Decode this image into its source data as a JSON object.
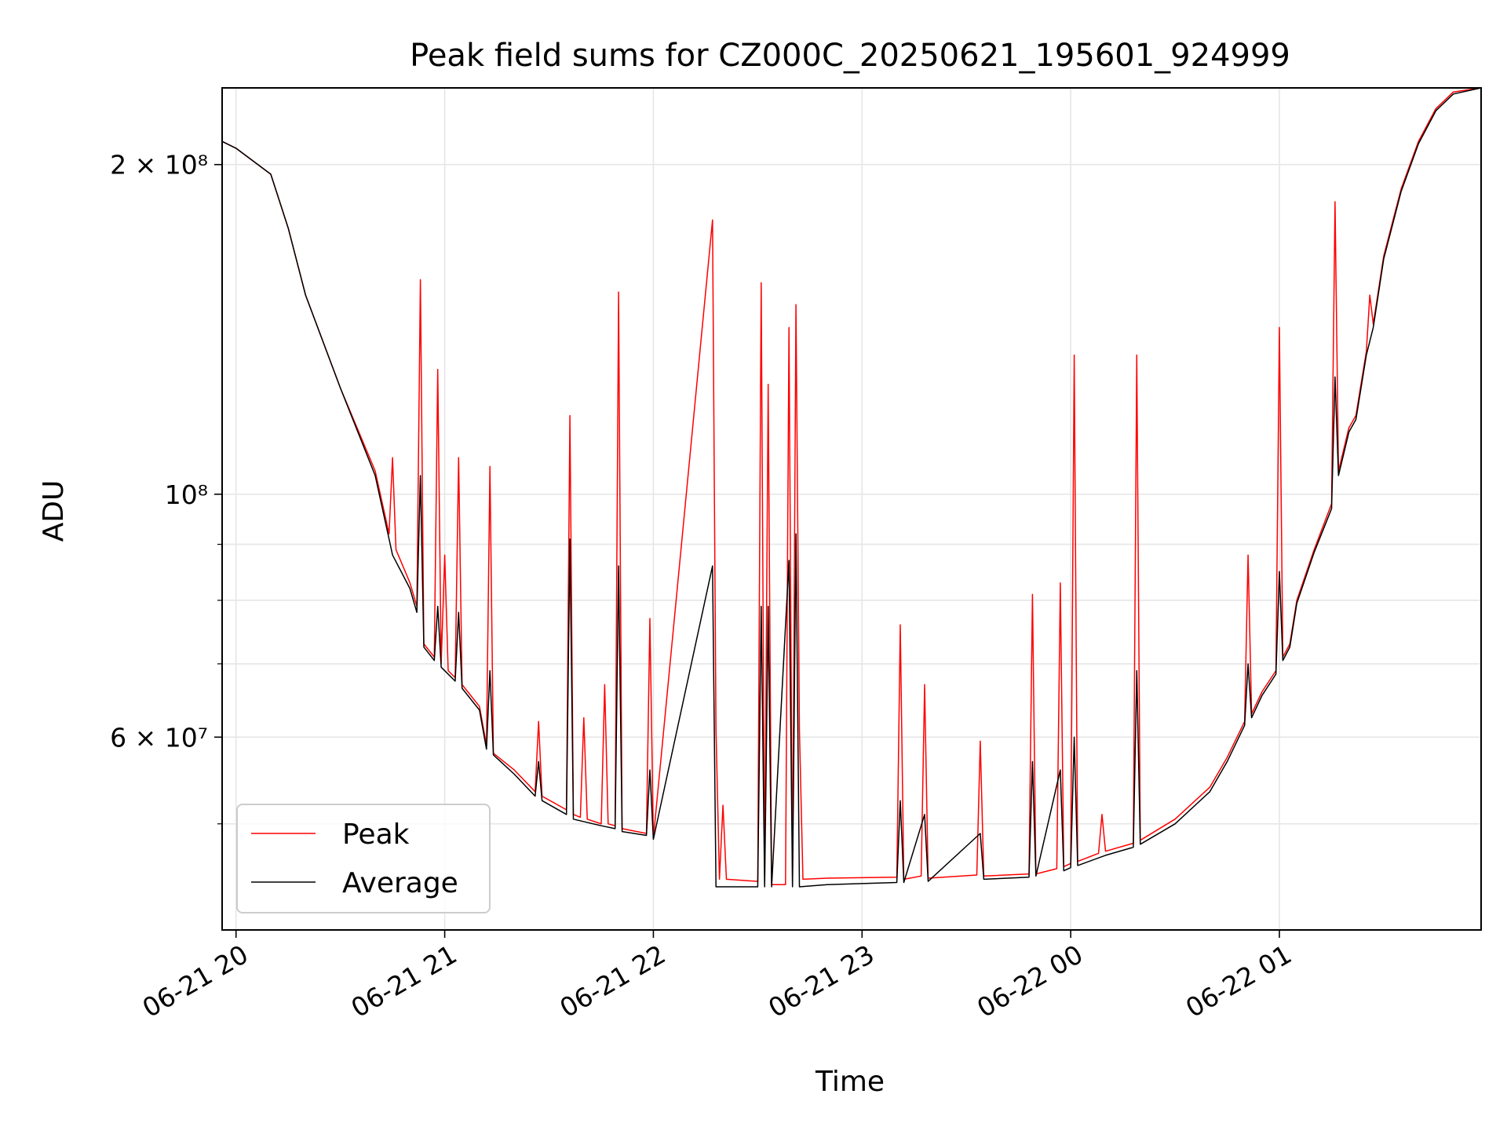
{
  "chart_data": {
    "type": "line",
    "title": "Peak field sums for CZ000C_20250621_195601_924999",
    "xlabel": "Time",
    "ylabel": "ADU",
    "yscale": "log",
    "ylim": [
      40000000,
      235000000
    ],
    "xlim": [
      "2025-06-21 19:56",
      "2025-06-22 01:58"
    ],
    "grid": true,
    "legend_position": "lower-left",
    "x_ticks": [
      {
        "value": "2025-06-21 20:00",
        "label": "06-21 20"
      },
      {
        "value": "2025-06-21 21:00",
        "label": "06-21 21"
      },
      {
        "value": "2025-06-21 22:00",
        "label": "06-21 22"
      },
      {
        "value": "2025-06-21 23:00",
        "label": "06-21 23"
      },
      {
        "value": "2025-06-22 00:00",
        "label": "06-22 00"
      },
      {
        "value": "2025-06-22 01:00",
        "label": "06-22 01"
      }
    ],
    "y_ticks": [
      {
        "value": 200000000,
        "label": "2 × 10⁸"
      },
      {
        "value": 100000000,
        "label": "10⁸"
      },
      {
        "value": 60000000,
        "label": "6 × 10⁷"
      }
    ],
    "y_minor_ticks": [
      50000000,
      70000000,
      80000000,
      90000000
    ],
    "series": [
      {
        "name": "Peak",
        "color": "#ff0000",
        "points": [
          [
            "2025-06-21 19:56",
            210000000
          ],
          [
            "2025-06-21 20:00",
            207000000
          ],
          [
            "2025-06-21 20:10",
            196000000
          ],
          [
            "2025-06-21 20:15",
            175000000
          ],
          [
            "2025-06-21 20:20",
            152000000
          ],
          [
            "2025-06-21 20:30",
            125000000
          ],
          [
            "2025-06-21 20:40",
            105000000
          ],
          [
            "2025-06-21 20:44",
            92000000
          ],
          [
            "2025-06-21 20:45",
            108000000
          ],
          [
            "2025-06-21 20:46",
            89000000
          ],
          [
            "2025-06-21 20:50",
            83000000
          ],
          [
            "2025-06-21 20:52",
            79000000
          ],
          [
            "2025-06-21 20:53",
            157000000
          ],
          [
            "2025-06-21 20:54",
            73000000
          ],
          [
            "2025-06-21 20:57",
            71000000
          ],
          [
            "2025-06-21 20:58",
            130000000
          ],
          [
            "2025-06-21 20:59",
            70000000
          ],
          [
            "2025-06-21 21:00",
            88000000
          ],
          [
            "2025-06-21 21:01",
            69000000
          ],
          [
            "2025-06-21 21:03",
            68000000
          ],
          [
            "2025-06-21 21:04",
            108000000
          ],
          [
            "2025-06-21 21:05",
            67000000
          ],
          [
            "2025-06-21 21:10",
            64000000
          ],
          [
            "2025-06-21 21:12",
            59000000
          ],
          [
            "2025-06-21 21:13",
            106000000
          ],
          [
            "2025-06-21 21:14",
            58000000
          ],
          [
            "2025-06-21 21:20",
            56000000
          ],
          [
            "2025-06-21 21:26",
            53500000
          ],
          [
            "2025-06-21 21:27",
            62000000
          ],
          [
            "2025-06-21 21:28",
            53000000
          ],
          [
            "2025-06-21 21:35",
            51500000
          ],
          [
            "2025-06-21 21:36",
            118000000
          ],
          [
            "2025-06-21 21:37",
            51000000
          ],
          [
            "2025-06-21 21:39",
            50700000
          ],
          [
            "2025-06-21 21:40",
            62500000
          ],
          [
            "2025-06-21 21:41",
            50500000
          ],
          [
            "2025-06-21 21:45",
            50000000
          ],
          [
            "2025-06-21 21:46",
            67000000
          ],
          [
            "2025-06-21 21:47",
            50000000
          ],
          [
            "2025-06-21 21:49",
            49800000
          ],
          [
            "2025-06-21 21:50",
            153000000
          ],
          [
            "2025-06-21 21:51",
            49500000
          ],
          [
            "2025-06-21 21:58",
            49000000
          ],
          [
            "2025-06-21 21:59",
            77000000
          ],
          [
            "2025-06-21 22:00",
            48500000
          ],
          [
            "2025-06-21 22:17",
            178000000
          ],
          [
            "2025-06-21 22:18",
            61000000
          ],
          [
            "2025-06-21 22:19",
            44500000
          ],
          [
            "2025-06-21 22:20",
            52000000
          ],
          [
            "2025-06-21 22:21",
            44500000
          ],
          [
            "2025-06-21 22:30",
            44300000
          ],
          [
            "2025-06-21 22:31",
            156000000
          ],
          [
            "2025-06-21 22:32",
            44200000
          ],
          [
            "2025-06-21 22:33",
            126000000
          ],
          [
            "2025-06-21 22:34",
            44000000
          ],
          [
            "2025-06-21 22:38",
            44000000
          ],
          [
            "2025-06-21 22:39",
            142000000
          ],
          [
            "2025-06-21 22:40",
            44000000
          ],
          [
            "2025-06-21 22:41",
            149000000
          ],
          [
            "2025-06-21 22:42",
            61000000
          ],
          [
            "2025-06-21 22:43",
            44500000
          ],
          [
            "2025-06-21 22:50",
            44600000
          ],
          [
            "2025-06-21 23:10",
            44700000
          ],
          [
            "2025-06-21 23:11",
            76000000
          ],
          [
            "2025-06-21 23:12",
            44500000
          ],
          [
            "2025-06-21 23:17",
            44800000
          ],
          [
            "2025-06-21 23:18",
            67000000
          ],
          [
            "2025-06-21 23:19",
            44600000
          ],
          [
            "2025-06-21 23:33",
            44900000
          ],
          [
            "2025-06-21 23:34",
            59500000
          ],
          [
            "2025-06-21 23:35",
            44800000
          ],
          [
            "2025-06-21 23:48",
            45000000
          ],
          [
            "2025-06-21 23:49",
            81000000
          ],
          [
            "2025-06-21 23:50",
            45000000
          ],
          [
            "2025-06-21 23:56",
            45500000
          ],
          [
            "2025-06-21 23:57",
            83000000
          ],
          [
            "2025-06-21 23:58",
            45700000
          ],
          [
            "2025-06-22 00:00",
            46000000
          ],
          [
            "2025-06-22 00:01",
            134000000
          ],
          [
            "2025-06-22 00:02",
            46200000
          ],
          [
            "2025-06-22 00:08",
            47000000
          ],
          [
            "2025-06-22 00:09",
            51000000
          ],
          [
            "2025-06-22 00:10",
            47200000
          ],
          [
            "2025-06-22 00:18",
            48000000
          ],
          [
            "2025-06-22 00:19",
            134000000
          ],
          [
            "2025-06-22 00:20",
            48300000
          ],
          [
            "2025-06-22 00:30",
            50500000
          ],
          [
            "2025-06-22 00:40",
            54000000
          ],
          [
            "2025-06-22 00:45",
            57500000
          ],
          [
            "2025-06-22 00:50",
            62000000
          ],
          [
            "2025-06-22 00:51",
            88000000
          ],
          [
            "2025-06-22 00:52",
            63000000
          ],
          [
            "2025-06-22 00:55",
            66000000
          ],
          [
            "2025-06-22 00:59",
            69000000
          ],
          [
            "2025-06-22 01:00",
            142000000
          ],
          [
            "2025-06-22 01:01",
            71000000
          ],
          [
            "2025-06-22 01:03",
            73000000
          ],
          [
            "2025-06-22 01:05",
            80000000
          ],
          [
            "2025-06-22 01:10",
            89000000
          ],
          [
            "2025-06-22 01:15",
            98000000
          ],
          [
            "2025-06-22 01:16",
            185000000
          ],
          [
            "2025-06-22 01:17",
            105000000
          ],
          [
            "2025-06-22 01:20",
            115000000
          ],
          [
            "2025-06-22 01:22",
            118000000
          ],
          [
            "2025-06-22 01:25",
            135000000
          ],
          [
            "2025-06-22 01:26",
            152000000
          ],
          [
            "2025-06-22 01:27",
            143000000
          ],
          [
            "2025-06-22 01:30",
            165000000
          ],
          [
            "2025-06-22 01:35",
            190000000
          ],
          [
            "2025-06-22 01:40",
            210000000
          ],
          [
            "2025-06-22 01:45",
            225000000
          ],
          [
            "2025-06-22 01:50",
            233000000
          ],
          [
            "2025-06-22 01:58",
            235000000
          ]
        ]
      },
      {
        "name": "Average",
        "color": "#000000",
        "points": [
          [
            "2025-06-21 19:56",
            210000000
          ],
          [
            "2025-06-21 20:00",
            207000000
          ],
          [
            "2025-06-21 20:10",
            196000000
          ],
          [
            "2025-06-21 20:15",
            175000000
          ],
          [
            "2025-06-21 20:20",
            152000000
          ],
          [
            "2025-06-21 20:30",
            125000000
          ],
          [
            "2025-06-21 20:40",
            104000000
          ],
          [
            "2025-06-21 20:44",
            91000000
          ],
          [
            "2025-06-21 20:45",
            88000000
          ],
          [
            "2025-06-21 20:50",
            82000000
          ],
          [
            "2025-06-21 20:52",
            78000000
          ],
          [
            "2025-06-21 20:53",
            104000000
          ],
          [
            "2025-06-21 20:54",
            72500000
          ],
          [
            "2025-06-21 20:57",
            70500000
          ],
          [
            "2025-06-21 20:58",
            79000000
          ],
          [
            "2025-06-21 20:59",
            69500000
          ],
          [
            "2025-06-21 21:03",
            67500000
          ],
          [
            "2025-06-21 21:04",
            78000000
          ],
          [
            "2025-06-21 21:05",
            66500000
          ],
          [
            "2025-06-21 21:10",
            63500000
          ],
          [
            "2025-06-21 21:12",
            58500000
          ],
          [
            "2025-06-21 21:13",
            69000000
          ],
          [
            "2025-06-21 21:14",
            57800000
          ],
          [
            "2025-06-21 21:20",
            55500000
          ],
          [
            "2025-06-21 21:26",
            53000000
          ],
          [
            "2025-06-21 21:27",
            57000000
          ],
          [
            "2025-06-21 21:28",
            52500000
          ],
          [
            "2025-06-21 21:35",
            51000000
          ],
          [
            "2025-06-21 21:36",
            91000000
          ],
          [
            "2025-06-21 21:37",
            50500000
          ],
          [
            "2025-06-21 21:45",
            49800000
          ],
          [
            "2025-06-21 21:49",
            49500000
          ],
          [
            "2025-06-21 21:50",
            86000000
          ],
          [
            "2025-06-21 21:51",
            49200000
          ],
          [
            "2025-06-21 21:58",
            48800000
          ],
          [
            "2025-06-21 21:59",
            56000000
          ],
          [
            "2025-06-21 22:00",
            48400000
          ],
          [
            "2025-06-21 22:17",
            86000000
          ],
          [
            "2025-06-21 22:18",
            43800000
          ],
          [
            "2025-06-21 22:30",
            43800000
          ],
          [
            "2025-06-21 22:31",
            79000000
          ],
          [
            "2025-06-21 22:32",
            43800000
          ],
          [
            "2025-06-21 22:33",
            79000000
          ],
          [
            "2025-06-21 22:34",
            43800000
          ],
          [
            "2025-06-21 22:39",
            87000000
          ],
          [
            "2025-06-21 22:40",
            43800000
          ],
          [
            "2025-06-21 22:41",
            92000000
          ],
          [
            "2025-06-21 22:42",
            43800000
          ],
          [
            "2025-06-21 22:50",
            44000000
          ],
          [
            "2025-06-21 23:10",
            44200000
          ],
          [
            "2025-06-21 23:11",
            52500000
          ],
          [
            "2025-06-21 23:12",
            44200000
          ],
          [
            "2025-06-21 23:18",
            51000000
          ],
          [
            "2025-06-21 23:19",
            44300000
          ],
          [
            "2025-06-21 23:34",
            49000000
          ],
          [
            "2025-06-21 23:35",
            44500000
          ],
          [
            "2025-06-21 23:48",
            44700000
          ],
          [
            "2025-06-21 23:49",
            57000000
          ],
          [
            "2025-06-21 23:50",
            44800000
          ],
          [
            "2025-06-21 23:57",
            56000000
          ],
          [
            "2025-06-21 23:58",
            45300000
          ],
          [
            "2025-06-22 00:00",
            45600000
          ],
          [
            "2025-06-22 00:01",
            60000000
          ],
          [
            "2025-06-22 00:02",
            45800000
          ],
          [
            "2025-06-22 00:10",
            46800000
          ],
          [
            "2025-06-22 00:18",
            47600000
          ],
          [
            "2025-06-22 00:19",
            69000000
          ],
          [
            "2025-06-22 00:20",
            47900000
          ],
          [
            "2025-06-22 00:30",
            50000000
          ],
          [
            "2025-06-22 00:40",
            53500000
          ],
          [
            "2025-06-22 00:45",
            57000000
          ],
          [
            "2025-06-22 00:50",
            61500000
          ],
          [
            "2025-06-22 00:51",
            70000000
          ],
          [
            "2025-06-22 00:52",
            62500000
          ],
          [
            "2025-06-22 00:55",
            65500000
          ],
          [
            "2025-06-22 00:59",
            68500000
          ],
          [
            "2025-06-22 01:00",
            85000000
          ],
          [
            "2025-06-22 01:01",
            70500000
          ],
          [
            "2025-06-22 01:03",
            72500000
          ],
          [
            "2025-06-22 01:05",
            79500000
          ],
          [
            "2025-06-22 01:10",
            88500000
          ],
          [
            "2025-06-22 01:15",
            97000000
          ],
          [
            "2025-06-22 01:16",
            128000000
          ],
          [
            "2025-06-22 01:17",
            104000000
          ],
          [
            "2025-06-22 01:20",
            114000000
          ],
          [
            "2025-06-22 01:22",
            117000000
          ],
          [
            "2025-06-22 01:25",
            134000000
          ],
          [
            "2025-06-22 01:27",
            142000000
          ],
          [
            "2025-06-22 01:30",
            164000000
          ],
          [
            "2025-06-22 01:35",
            189000000
          ],
          [
            "2025-06-22 01:40",
            209000000
          ],
          [
            "2025-06-22 01:45",
            224000000
          ],
          [
            "2025-06-22 01:50",
            232000000
          ],
          [
            "2025-06-22 01:58",
            235000000
          ]
        ]
      }
    ]
  }
}
